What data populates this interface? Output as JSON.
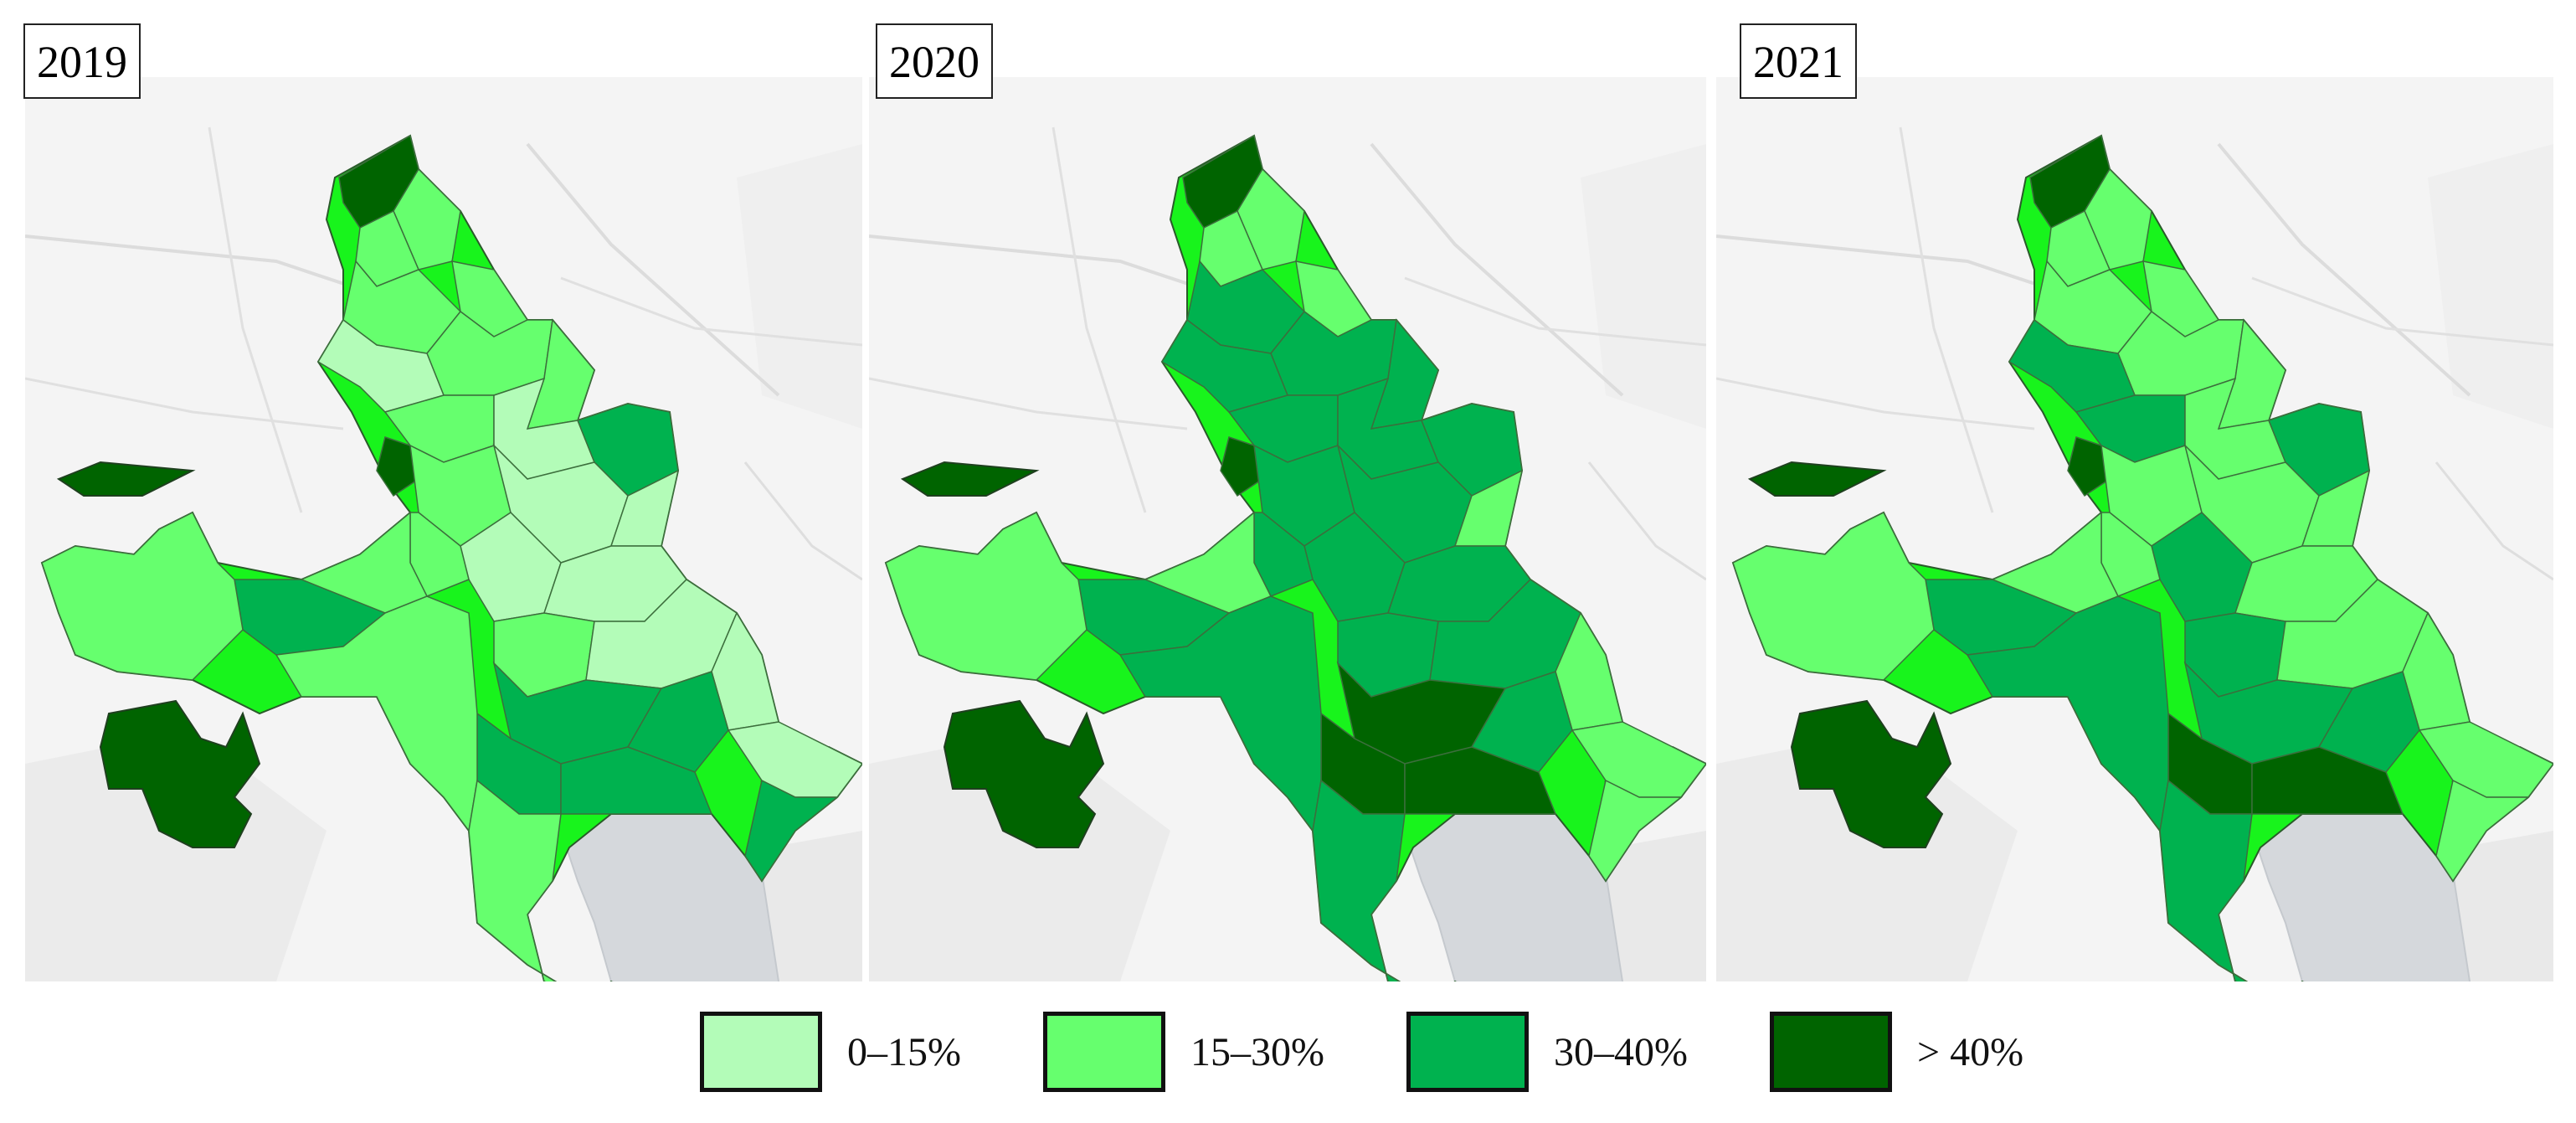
{
  "colors": {
    "class_0_15": "#b3fcb8",
    "class_15_30": "#66ff6e",
    "class_30_40": "#00b24f",
    "class_gt_40": "#006400",
    "base_green": "#18f41c",
    "basemap_bg": "#f4f4f4",
    "water": "#d5d8dc"
  },
  "panels": [
    {
      "year": "2019"
    },
    {
      "year": "2020"
    },
    {
      "year": "2021"
    }
  ],
  "legend": {
    "items": [
      {
        "label": "0–15%",
        "color": "#b3fcb8"
      },
      {
        "label": "15–30%",
        "color": "#66ff6e"
      },
      {
        "label": "30–40%",
        "color": "#00b24f"
      },
      {
        "label": "> 40%",
        "color": "#006400"
      }
    ]
  }
}
